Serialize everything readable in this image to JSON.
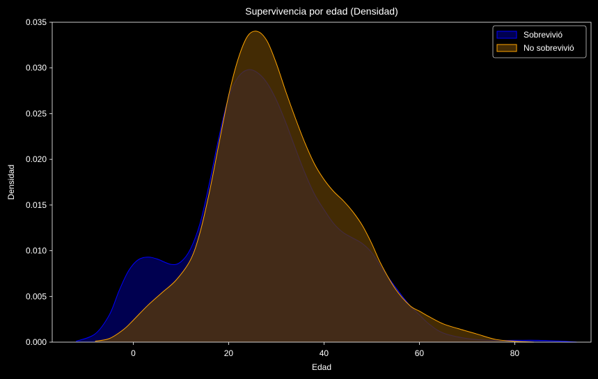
{
  "chart_data": {
    "type": "area",
    "title": "Supervivencia por edad (Densidad)",
    "xlabel": "Edad",
    "ylabel": "Densidad",
    "xlim": [
      -17,
      96
    ],
    "ylim": [
      0,
      0.035
    ],
    "xticks": [
      0,
      20,
      40,
      60,
      80
    ],
    "yticks": [
      0.0,
      0.005,
      0.01,
      0.015,
      0.02,
      0.025,
      0.03,
      0.035
    ],
    "ytick_labels": [
      "0.000",
      "0.005",
      "0.010",
      "0.015",
      "0.020",
      "0.025",
      "0.030",
      "0.035"
    ],
    "grid": false,
    "legend_position": "top-right",
    "background": "#000000",
    "series": [
      {
        "name": "Sobrevivió",
        "color": "#0000ff",
        "fill": "#00006b",
        "x": [
          -12,
          -8,
          -5,
          -3,
          -1,
          1,
          3,
          5,
          8,
          10,
          12,
          14,
          16,
          18,
          20,
          22,
          24,
          26,
          28,
          30,
          32,
          34,
          36,
          38,
          40,
          42,
          44,
          46,
          48,
          50,
          52,
          55,
          58,
          60,
          62,
          65,
          70,
          75,
          80,
          85,
          90,
          93
        ],
        "values": [
          0.0001,
          0.0009,
          0.003,
          0.0056,
          0.0078,
          0.009,
          0.0093,
          0.0091,
          0.0085,
          0.0088,
          0.0102,
          0.013,
          0.0175,
          0.0225,
          0.0268,
          0.029,
          0.0298,
          0.0295,
          0.0284,
          0.0265,
          0.024,
          0.0212,
          0.0185,
          0.0162,
          0.0145,
          0.013,
          0.012,
          0.0114,
          0.0108,
          0.0098,
          0.0082,
          0.006,
          0.004,
          0.003,
          0.002,
          0.001,
          0.0004,
          0.0002,
          0.0002,
          0.0002,
          0.0001,
          0.0
        ]
      },
      {
        "name": "No sobrevivió",
        "color": "#ffa500",
        "fill": "#5a3a06",
        "x": [
          -8,
          -5,
          -2,
          0,
          3,
          6,
          9,
          12,
          14,
          16,
          18,
          20,
          22,
          24,
          26,
          28,
          30,
          32,
          34,
          36,
          38,
          40,
          42,
          44,
          46,
          48,
          50,
          52,
          55,
          58,
          60,
          62,
          65,
          68,
          72,
          76,
          80,
          84
        ],
        "values": [
          0.0001,
          0.0004,
          0.0014,
          0.0024,
          0.004,
          0.0054,
          0.0068,
          0.009,
          0.012,
          0.0165,
          0.0218,
          0.027,
          0.031,
          0.0335,
          0.034,
          0.033,
          0.0305,
          0.0274,
          0.0245,
          0.0218,
          0.0195,
          0.0178,
          0.0165,
          0.0155,
          0.0143,
          0.0128,
          0.0108,
          0.0085,
          0.0058,
          0.004,
          0.0034,
          0.0028,
          0.002,
          0.0015,
          0.0009,
          0.0003,
          0.0001,
          0.0
        ]
      }
    ]
  }
}
